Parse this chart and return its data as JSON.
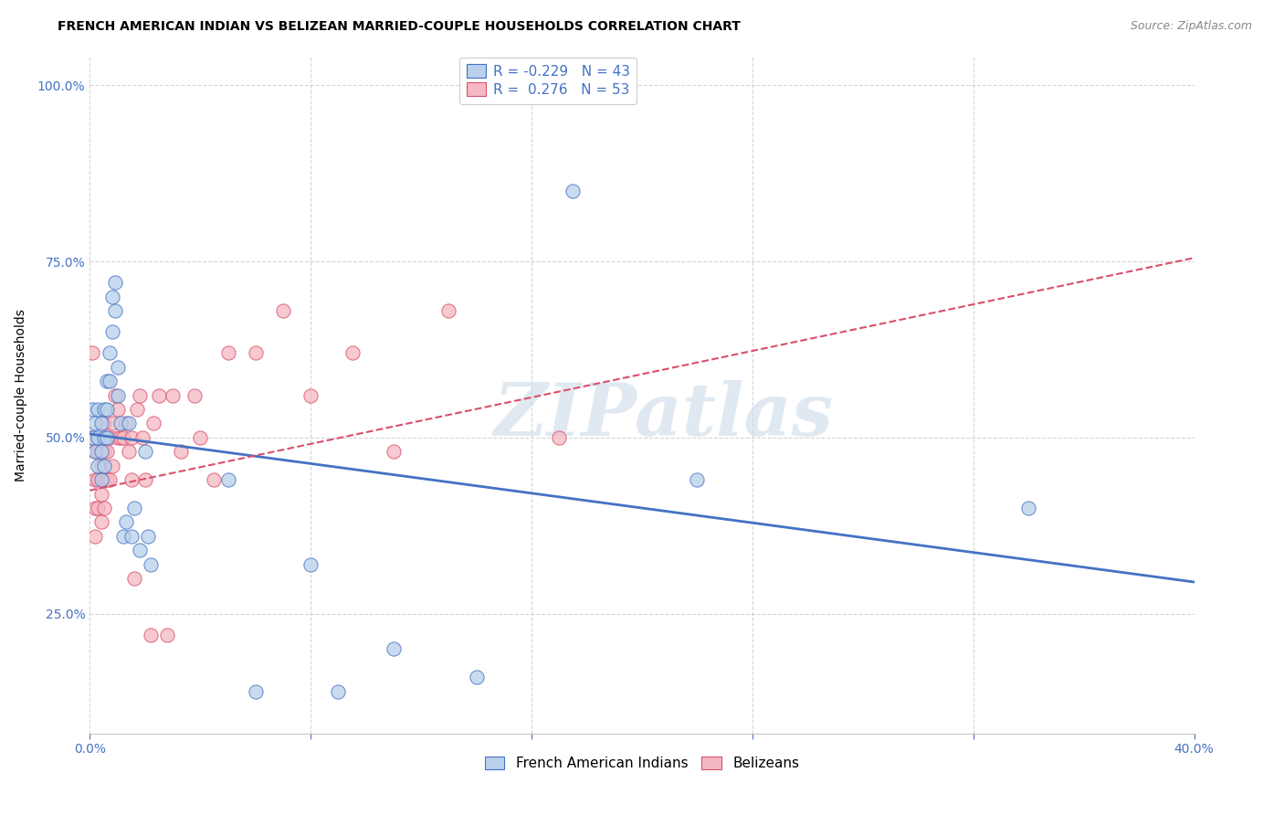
{
  "title": "FRENCH AMERICAN INDIAN VS BELIZEAN MARRIED-COUPLE HOUSEHOLDS CORRELATION CHART",
  "source": "Source: ZipAtlas.com",
  "ylabel_label": "Married-couple Households",
  "xmin": 0.0,
  "xmax": 0.4,
  "ymin": 0.08,
  "ymax": 1.04,
  "yticks": [
    0.25,
    0.5,
    0.75,
    1.0
  ],
  "ytick_labels": [
    "25.0%",
    "50.0%",
    "75.0%",
    "100.0%"
  ],
  "xticks": [
    0.0,
    0.08,
    0.16,
    0.24,
    0.32,
    0.4
  ],
  "xtick_labels": [
    "0.0%",
    "",
    "",
    "",
    "",
    "40.0%"
  ],
  "blue_R": -0.229,
  "blue_N": 43,
  "pink_R": 0.276,
  "pink_N": 53,
  "blue_color": "#b8d0ea",
  "pink_color": "#f5b8c2",
  "blue_line_color": "#4472c4",
  "pink_line_color": "#d94f6b",
  "background_color": "#ffffff",
  "grid_color": "#d0d0d0",
  "blue_scatter_x": [
    0.001,
    0.001,
    0.002,
    0.002,
    0.003,
    0.003,
    0.003,
    0.004,
    0.004,
    0.004,
    0.005,
    0.005,
    0.005,
    0.006,
    0.006,
    0.006,
    0.007,
    0.007,
    0.008,
    0.008,
    0.009,
    0.009,
    0.01,
    0.01,
    0.011,
    0.012,
    0.013,
    0.014,
    0.015,
    0.016,
    0.018,
    0.02,
    0.021,
    0.022,
    0.05,
    0.06,
    0.08,
    0.09,
    0.11,
    0.14,
    0.175,
    0.22,
    0.34
  ],
  "blue_scatter_y": [
    0.5,
    0.54,
    0.48,
    0.52,
    0.46,
    0.5,
    0.54,
    0.44,
    0.48,
    0.52,
    0.46,
    0.5,
    0.54,
    0.5,
    0.54,
    0.58,
    0.58,
    0.62,
    0.65,
    0.7,
    0.68,
    0.72,
    0.56,
    0.6,
    0.52,
    0.36,
    0.38,
    0.52,
    0.36,
    0.4,
    0.34,
    0.48,
    0.36,
    0.32,
    0.44,
    0.14,
    0.32,
    0.14,
    0.2,
    0.16,
    0.85,
    0.44,
    0.4
  ],
  "pink_scatter_x": [
    0.001,
    0.001,
    0.002,
    0.002,
    0.002,
    0.002,
    0.003,
    0.003,
    0.003,
    0.004,
    0.004,
    0.004,
    0.005,
    0.005,
    0.005,
    0.005,
    0.006,
    0.006,
    0.007,
    0.007,
    0.008,
    0.008,
    0.009,
    0.01,
    0.01,
    0.011,
    0.012,
    0.013,
    0.014,
    0.015,
    0.015,
    0.016,
    0.017,
    0.018,
    0.019,
    0.02,
    0.022,
    0.023,
    0.025,
    0.028,
    0.03,
    0.033,
    0.038,
    0.04,
    0.045,
    0.05,
    0.06,
    0.07,
    0.08,
    0.095,
    0.11,
    0.13,
    0.17
  ],
  "pink_scatter_y": [
    0.62,
    0.5,
    0.36,
    0.4,
    0.44,
    0.48,
    0.4,
    0.44,
    0.48,
    0.38,
    0.42,
    0.46,
    0.4,
    0.44,
    0.48,
    0.52,
    0.44,
    0.48,
    0.44,
    0.5,
    0.46,
    0.52,
    0.56,
    0.5,
    0.54,
    0.5,
    0.5,
    0.52,
    0.48,
    0.44,
    0.5,
    0.3,
    0.54,
    0.56,
    0.5,
    0.44,
    0.22,
    0.52,
    0.56,
    0.22,
    0.56,
    0.48,
    0.56,
    0.5,
    0.44,
    0.62,
    0.62,
    0.68,
    0.56,
    0.62,
    0.48,
    0.68,
    0.5
  ],
  "blue_line_x0": 0.0,
  "blue_line_y0": 0.505,
  "blue_line_x1": 0.4,
  "blue_line_y1": 0.295,
  "pink_line_x0": 0.0,
  "pink_line_y0": 0.425,
  "pink_line_x1": 0.4,
  "pink_line_y1": 0.755,
  "watermark_text": "ZIPatlas",
  "legend1_label_blue": "R = -0.229   N = 43",
  "legend1_label_pink": "R =  0.276   N = 53",
  "legend2_label_blue": "French American Indians",
  "legend2_label_pink": "Belizeans",
  "title_fontsize": 10,
  "tick_fontsize": 10,
  "ylabel_fontsize": 10,
  "source_fontsize": 9,
  "legend_fontsize": 11
}
